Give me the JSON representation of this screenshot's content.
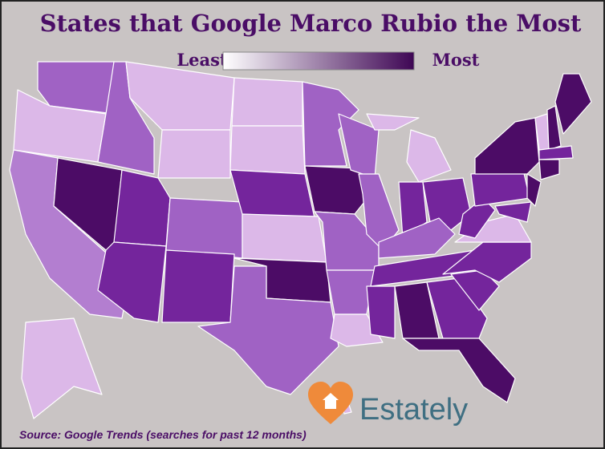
{
  "title": "States that Google Marco Rubio the Most",
  "legend": {
    "low": "Least",
    "high": "Most"
  },
  "logo": "Estately",
  "source": "Source: Google Trends (searches for past 12 months)"
}
